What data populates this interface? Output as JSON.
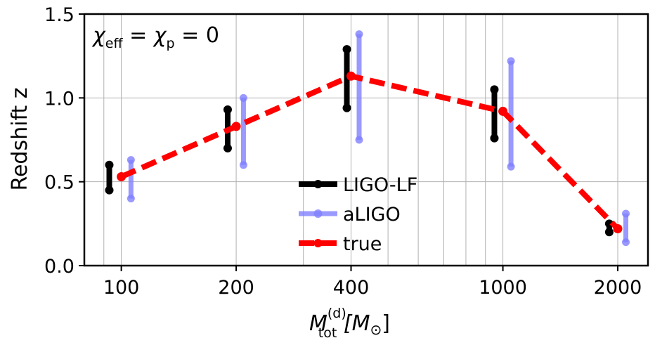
{
  "chart_data": {
    "type": "scatter",
    "annotation": {
      "chi": "χ",
      "eff": "eff",
      "p": "p",
      "eq": "=",
      "zero": "0"
    },
    "xlabel": {
      "main": "M",
      "sup": "(d)",
      "sub": "tot",
      "units": "[M",
      "odot": "⊙",
      "close": "]"
    },
    "ylabel": "Redshift z",
    "x_scale": "log",
    "xlim": [
      80,
      2400
    ],
    "ylim": [
      0.0,
      1.5
    ],
    "x_ticks": [
      100,
      200,
      400,
      1000,
      2000
    ],
    "x_tick_labels": [
      "100",
      "200",
      "400",
      "1000",
      "2000"
    ],
    "y_ticks": [
      0.0,
      0.5,
      1.0,
      1.5
    ],
    "y_tick_labels": [
      "0.0",
      "0.5",
      "1.0",
      "1.5"
    ],
    "grid": true,
    "legend_position": "center-bottom",
    "series": [
      {
        "name": "LIGO-LF",
        "style": "errorbar",
        "color": "#000000",
        "x": [
          93,
          190,
          390,
          950,
          1900
        ],
        "low": [
          0.45,
          0.7,
          0.94,
          0.76,
          0.2
        ],
        "high": [
          0.6,
          0.93,
          1.29,
          1.05,
          0.25
        ]
      },
      {
        "name": "aLIGO",
        "style": "errorbar",
        "color": "#8080ff",
        "x": [
          106,
          209,
          420,
          1050,
          2100
        ],
        "low": [
          0.4,
          0.6,
          0.75,
          0.59,
          0.14
        ],
        "high": [
          0.63,
          1.0,
          1.38,
          1.22,
          0.31
        ]
      },
      {
        "name": "true",
        "style": "dashed-line",
        "color": "#ff0000",
        "x": [
          100,
          200,
          400,
          1000,
          2000
        ],
        "y": [
          0.53,
          0.83,
          1.13,
          0.92,
          0.22
        ]
      }
    ]
  }
}
